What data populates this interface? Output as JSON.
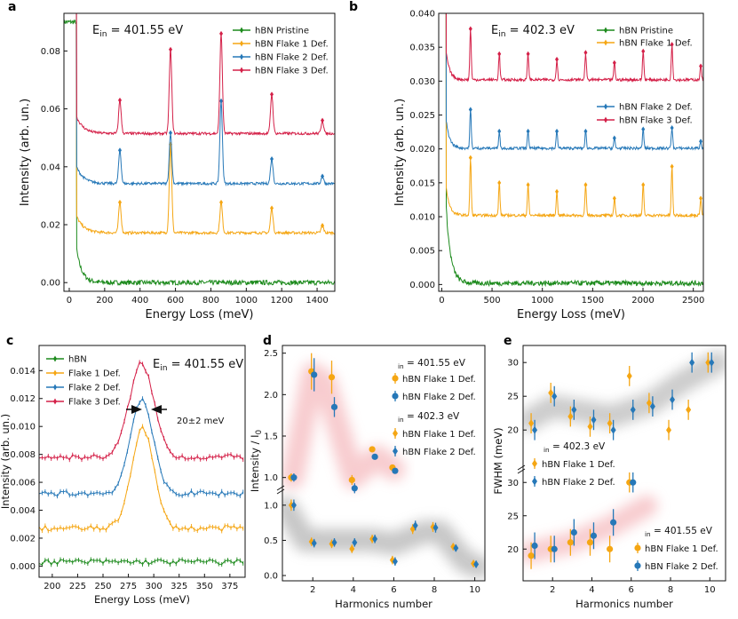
{
  "colors": {
    "green": "#1c8a1c",
    "orange": "#f5a613",
    "blue": "#2678b8",
    "red": "#d42048",
    "purple_axis": "#3b2db0"
  },
  "chart_data": [
    {
      "panel": "a",
      "type": "line",
      "title": "E_in = 401.55 eV",
      "ein": {
        "label": "E",
        "sub": "in",
        "value": "=  401.55 eV"
      },
      "xlabel": "Energy Loss (meV)",
      "ylabel": "Intensity (arb. un.)",
      "xlim": [
        -30,
        1500
      ],
      "ylim": [
        -0.003,
        0.093
      ],
      "xticks": [
        0,
        200,
        400,
        600,
        800,
        1000,
        1200,
        1400
      ],
      "xtick_labels": [
        "0",
        "200",
        "400",
        "600",
        "800",
        "1000",
        "1200",
        "1400"
      ],
      "yticks": [
        0,
        0.02,
        0.04,
        0.06,
        0.08
      ],
      "ytick_labels": [
        "0.00",
        "0.02",
        "0.04",
        "0.06",
        "0.08"
      ],
      "legend_position": "top-right",
      "series": [
        {
          "name": "hBN Pristine",
          "color": "green",
          "offset": 0.0,
          "peaks": [],
          "decay": {
            "amp": 0.012,
            "tau": 30,
            "start": 40
          }
        },
        {
          "name": "hBN Flake 1 Def.",
          "color": "orange",
          "offset": 0.0172,
          "peaks": [
            [
              286,
              0.0105
            ],
            [
              572,
              0.0305
            ],
            [
              858,
              0.0105
            ],
            [
              1144,
              0.0085
            ],
            [
              1430,
              0.0025
            ]
          ],
          "decay": {
            "amp": 0.006,
            "tau": 40,
            "start": 40
          }
        },
        {
          "name": "hBN Flake 2 Def.",
          "color": "blue",
          "offset": 0.0342,
          "peaks": [
            [
              286,
              0.0115
            ],
            [
              572,
              0.0175
            ],
            [
              858,
              0.0285
            ],
            [
              1144,
              0.0085
            ],
            [
              1430,
              0.0025
            ]
          ],
          "decay": {
            "amp": 0.006,
            "tau": 40,
            "start": 40
          }
        },
        {
          "name": "hBN Flake 3 Def.",
          "color": "red",
          "offset": 0.0515,
          "peaks": [
            [
              286,
              0.0115
            ],
            [
              572,
              0.029
            ],
            [
              858,
              0.0345
            ],
            [
              1144,
              0.0135
            ],
            [
              1430,
              0.0045
            ]
          ],
          "decay": {
            "amp": 0.006,
            "tau": 40,
            "start": 40
          }
        }
      ]
    },
    {
      "panel": "b",
      "type": "line",
      "title": "E_in = 402.3 eV",
      "ein": {
        "label": "E",
        "sub": "in",
        "value": "=  402.3 eV"
      },
      "xlabel": "Energy Loss (meV)",
      "ylabel": "Intensity (arb. un.)",
      "xlim": [
        -30,
        2600
      ],
      "ylim": [
        -0.001,
        0.04
      ],
      "xticks": [
        0,
        500,
        1000,
        1500,
        2000,
        2500
      ],
      "xtick_labels": [
        "0",
        "500",
        "1000",
        "1500",
        "2000",
        "2500"
      ],
      "yticks": [
        0,
        0.005,
        0.01,
        0.015,
        0.02,
        0.025,
        0.03,
        0.035,
        0.04
      ],
      "ytick_labels": [
        "0.000",
        "0.005",
        "0.010",
        "0.015",
        "0.020",
        "0.025",
        "0.030",
        "0.035",
        "0.040"
      ],
      "legend_position": "top-right and middle-right",
      "series": [
        {
          "name": "hBN Pristine",
          "color": "green",
          "offset": 0.0002,
          "peaks": [],
          "decay": {
            "amp": 0.011,
            "tau": 45,
            "start": 45
          }
        },
        {
          "name": "hBN Flake 1 Def.",
          "color": "orange",
          "offset": 0.0102,
          "peaks": [
            [
              286,
              0.0085
            ],
            [
              572,
              0.0048
            ],
            [
              858,
              0.0045
            ],
            [
              1144,
              0.0035
            ],
            [
              1430,
              0.0045
            ],
            [
              1716,
              0.0025
            ],
            [
              2002,
              0.0045
            ],
            [
              2288,
              0.0072
            ],
            [
              2574,
              0.0025
            ]
          ],
          "decay": {
            "amp": 0.004,
            "tau": 35,
            "start": 45
          }
        },
        {
          "name": "hBN Flake 2 Def.",
          "color": "blue",
          "offset": 0.0201,
          "peaks": [
            [
              286,
              0.0057
            ],
            [
              572,
              0.0025
            ],
            [
              858,
              0.0025
            ],
            [
              1144,
              0.0025
            ],
            [
              1430,
              0.0025
            ],
            [
              1716,
              0.0015
            ],
            [
              2002,
              0.0028
            ],
            [
              2288,
              0.003
            ],
            [
              2574,
              0.001
            ]
          ],
          "decay": {
            "amp": 0.004,
            "tau": 35,
            "start": 45
          }
        },
        {
          "name": "hBN Flake 3 Def.",
          "color": "red",
          "offset": 0.0302,
          "peaks": [
            [
              286,
              0.0075
            ],
            [
              572,
              0.0038
            ],
            [
              858,
              0.0038
            ],
            [
              1144,
              0.003
            ],
            [
              1430,
              0.004
            ],
            [
              1716,
              0.0025
            ],
            [
              2002,
              0.0042
            ],
            [
              2288,
              0.0052
            ],
            [
              2574,
              0.002
            ]
          ],
          "decay": {
            "amp": 0.004,
            "tau": 35,
            "start": 45
          }
        }
      ]
    },
    {
      "panel": "c",
      "type": "line",
      "title": "E_in = 401.55 eV",
      "ein": {
        "label": "E",
        "sub": "in",
        "value": "=  401.55 eV"
      },
      "xlabel": "Energy Loss (meV)",
      "ylabel": "Intensity (arb. un.)",
      "xlim": [
        187,
        390
      ],
      "ylim": [
        -0.0008,
        0.0158
      ],
      "xticks": [
        200,
        225,
        250,
        275,
        300,
        325,
        350,
        375
      ],
      "xtick_labels": [
        "200",
        "225",
        "250",
        "275",
        "300",
        "325",
        "350",
        "375"
      ],
      "yticks": [
        0,
        0.002,
        0.004,
        0.006,
        0.008,
        0.01,
        0.012,
        0.014
      ],
      "ytick_labels": [
        "0.000",
        "0.002",
        "0.004",
        "0.006",
        "0.008",
        "0.010",
        "0.012",
        "0.014"
      ],
      "annotation": "20±2 meV",
      "legend_position": "top-left",
      "series": [
        {
          "name": "hBN",
          "color": "green",
          "offset": 0.0003,
          "center": 288,
          "height": 0.0,
          "width": 11
        },
        {
          "name": "Flake 1 Def.",
          "color": "orange",
          "offset": 0.0027,
          "center": 289,
          "height": 0.0072,
          "width": 11
        },
        {
          "name": "Flake 2 Def.",
          "color": "blue",
          "offset": 0.0052,
          "center": 288,
          "height": 0.0068,
          "width": 11
        },
        {
          "name": "Flake 3 Def.",
          "color": "red",
          "offset": 0.0078,
          "center": 288,
          "height": 0.0067,
          "width": 12
        }
      ]
    },
    {
      "panel": "d",
      "type": "scatter",
      "xlabel": "Harmonics number",
      "ylabel": "Intensity / I_0",
      "ylabel_base": "Intensity / I",
      "ylabel_sub": "0",
      "xlim": [
        0.5,
        10.5
      ],
      "xticks": [
        2,
        4,
        6,
        8,
        10
      ],
      "xtick_labels": [
        "2",
        "4",
        "6",
        "8",
        "10"
      ],
      "upper_ylim": [
        0.9,
        2.55
      ],
      "upper_yticks": [
        1.0,
        1.5,
        2.0,
        2.5
      ],
      "upper_ytick_labels": [
        "1.0",
        "1.5",
        "2.0",
        "2.5"
      ],
      "lower_ylim": [
        -0.05,
        1.2
      ],
      "lower_yticks": [
        0.0,
        0.5,
        1.0
      ],
      "lower_ytick_labels": [
        "0.0",
        "0.5",
        "1.0"
      ],
      "legend": {
        "group1": {
          "ein": "E",
          "sub": "in",
          "value": " = 401.55 eV",
          "items": [
            "hBN Flake 1 Def.",
            "hBN Flake 2 Def."
          ]
        },
        "group2": {
          "ein": "E",
          "sub": "in",
          "value": " = 402.3 eV",
          "items": [
            "hBN Flake 1 Def.",
            "hBN Flake 2 Def."
          ]
        }
      },
      "series": [
        {
          "name": "hBN Flake 1 Def.",
          "group": "401.55 eV",
          "axis": "upper",
          "color": "orange",
          "marker": "circle",
          "points": [
            [
              1,
              1.0
            ],
            [
              2,
              2.28
            ],
            [
              3,
              2.21
            ],
            [
              4,
              0.97
            ],
            [
              5,
              1.34
            ],
            [
              6,
              1.12
            ]
          ],
          "err": [
            0.05,
            0.22,
            0.2,
            0.06,
            0.03,
            0.03
          ]
        },
        {
          "name": "hBN Flake 2 Def.",
          "group": "401.55 eV",
          "axis": "upper",
          "color": "blue",
          "marker": "circle",
          "points": [
            [
              1,
              1.0
            ],
            [
              2,
              2.24
            ],
            [
              3,
              1.85
            ],
            [
              4,
              0.87
            ],
            [
              5,
              1.25
            ],
            [
              6,
              1.08
            ]
          ],
          "err": [
            0.05,
            0.2,
            0.12,
            0.06,
            0.03,
            0.03
          ]
        },
        {
          "name": "hBN Flake 1 Def.",
          "group": "402.3 eV",
          "axis": "lower",
          "color": "orange",
          "marker": "diamond",
          "points": [
            [
              1,
              1.0
            ],
            [
              2,
              0.48
            ],
            [
              3,
              0.45
            ],
            [
              4,
              0.38
            ],
            [
              5,
              0.52
            ],
            [
              6,
              0.22
            ],
            [
              7,
              0.66
            ],
            [
              8,
              0.69
            ],
            [
              9,
              0.41
            ],
            [
              10,
              0.17
            ]
          ],
          "err": [
            0.08,
            0.06,
            0.06,
            0.06,
            0.06,
            0.06,
            0.07,
            0.07,
            0.05,
            0.05
          ]
        },
        {
          "name": "hBN Flake 2 Def.",
          "group": "402.3 eV",
          "axis": "lower",
          "color": "blue",
          "marker": "diamond",
          "points": [
            [
              1,
              1.0
            ],
            [
              2,
              0.46
            ],
            [
              3,
              0.47
            ],
            [
              4,
              0.47
            ],
            [
              5,
              0.52
            ],
            [
              6,
              0.2
            ],
            [
              7,
              0.71
            ],
            [
              8,
              0.68
            ],
            [
              9,
              0.39
            ],
            [
              10,
              0.16
            ]
          ],
          "err": [
            0.08,
            0.06,
            0.06,
            0.06,
            0.06,
            0.06,
            0.07,
            0.07,
            0.05,
            0.05
          ]
        }
      ]
    },
    {
      "panel": "e",
      "type": "scatter",
      "xlabel": "Harmonics number",
      "ylabel": "FWHM (meV)",
      "xlim": [
        0.5,
        10.8
      ],
      "xticks": [
        2,
        4,
        6,
        8,
        10
      ],
      "xtick_labels": [
        "2",
        "4",
        "6",
        "8",
        "10"
      ],
      "upper_ylim": [
        14.5,
        32
      ],
      "upper_yticks": [
        20,
        25,
        30
      ],
      "upper_ytick_labels": [
        "20",
        "25",
        "30"
      ],
      "lower_ylim": [
        15.5,
        31.5
      ],
      "lower_yticks": [
        20,
        25,
        30
      ],
      "lower_ytick_labels": [
        "20",
        "25",
        "30"
      ],
      "legend": {
        "group1": {
          "ein": "E",
          "sub": "in",
          "value": " = 402.3 eV",
          "items": [
            "hBN Flake 1 Def.",
            "hBN Flake 2 Def."
          ]
        },
        "group2": {
          "ein": "E",
          "sub": "in",
          "value": " = 401.55 eV",
          "items": [
            "hBN Flake 1 Def.",
            "hBN Flake 2 Def."
          ]
        }
      },
      "series": [
        {
          "name": "hBN Flake 1 Def.",
          "group": "402.3 eV",
          "axis": "upper",
          "color": "orange",
          "marker": "diamond",
          "points": [
            [
              1,
              21
            ],
            [
              2,
              25.5
            ],
            [
              3,
              22
            ],
            [
              4,
              20.5
            ],
            [
              5,
              21
            ],
            [
              6,
              28
            ],
            [
              7,
              24
            ],
            [
              8,
              20
            ],
            [
              9,
              23
            ],
            [
              10,
              30
            ]
          ],
          "err": [
            1.5,
            1.5,
            1.5,
            1.5,
            1.5,
            1.5,
            1.5,
            1.5,
            1.5,
            1.5
          ]
        },
        {
          "name": "hBN Flake 2 Def.",
          "group": "402.3 eV",
          "axis": "upper",
          "color": "blue",
          "marker": "diamond",
          "points": [
            [
              1,
              20
            ],
            [
              2,
              25
            ],
            [
              3,
              23
            ],
            [
              4,
              21.5
            ],
            [
              5,
              20
            ],
            [
              6,
              23
            ],
            [
              7,
              23.5
            ],
            [
              8,
              24.5
            ],
            [
              9,
              30
            ],
            [
              10,
              30
            ]
          ],
          "err": [
            1.5,
            1.5,
            1.5,
            1.5,
            1.5,
            1.5,
            1.5,
            1.5,
            1.5,
            1.5
          ]
        },
        {
          "name": "hBN Flake 1 Def.",
          "group": "401.55 eV",
          "axis": "lower",
          "color": "orange",
          "marker": "circle",
          "points": [
            [
              1,
              19
            ],
            [
              2,
              20
            ],
            [
              3,
              21
            ],
            [
              4,
              21
            ],
            [
              5,
              20
            ],
            [
              6,
              30
            ]
          ],
          "err": [
            2,
            2,
            2,
            2,
            2,
            1.5
          ]
        },
        {
          "name": "hBN Flake 2 Def.",
          "group": "401.55 eV",
          "axis": "lower",
          "color": "blue",
          "marker": "circle",
          "points": [
            [
              1,
              20.5
            ],
            [
              2,
              20
            ],
            [
              3,
              22.5
            ],
            [
              4,
              22
            ],
            [
              5,
              24
            ],
            [
              6,
              30
            ]
          ],
          "err": [
            2,
            2,
            2,
            2,
            2,
            1.5
          ]
        }
      ]
    }
  ]
}
